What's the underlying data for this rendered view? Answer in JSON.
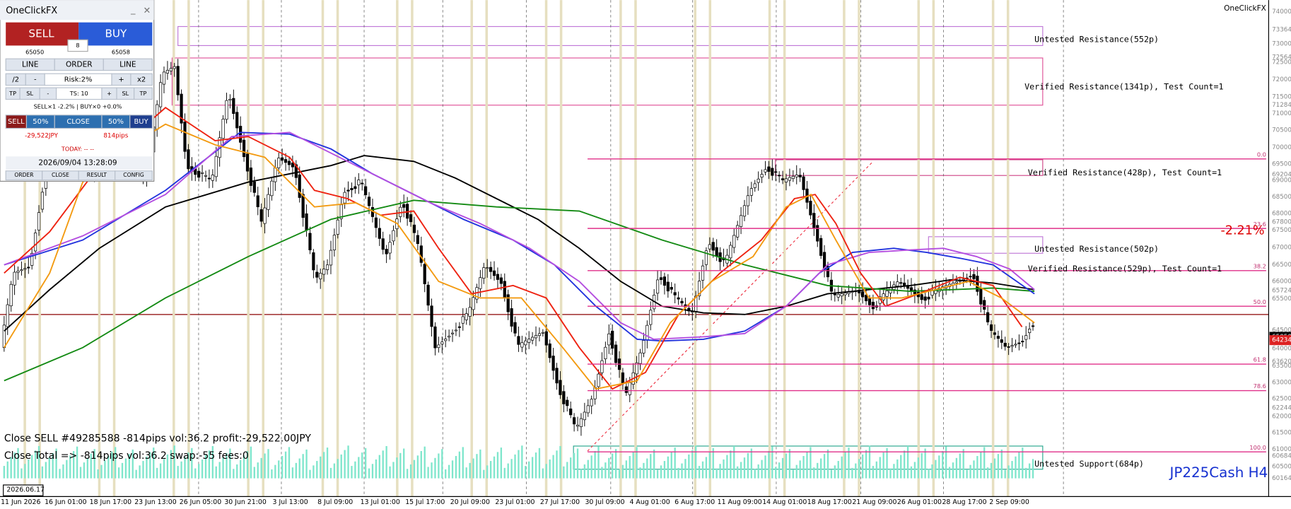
{
  "panel": {
    "title": "OneClickFX",
    "sell": "SELL",
    "buy": "BUY",
    "spread": "8",
    "bid": "65050",
    "ask": "65058",
    "row1": [
      "LINE",
      "ORDER",
      "LINE"
    ],
    "row2": [
      "/2",
      "-",
      "Risk:2%",
      "+",
      "x2"
    ],
    "row3": [
      "TP",
      "SL",
      "-",
      "TS: 10",
      "+",
      "SL",
      "TP"
    ],
    "positions": "SELL×1 -2.2% | BUY×0 +0.0%",
    "row4": [
      "SELL",
      "50%",
      "CLOSE",
      "50%",
      "BUY"
    ],
    "pnl": "-29,522JPY",
    "pips": "814pips",
    "today": "TODAY: -- --",
    "datetime": "2026/09/04  13:28:09",
    "tabs": [
      "ORDER",
      "CLOSE",
      "RESULT",
      "CONFIG"
    ]
  },
  "chart": {
    "brand": "OneClickFX",
    "symbol": "JP225Cash H4",
    "percent": "-2.21%",
    "start_date": "2026.06.17",
    "log": [
      "Close SELL #49285588 -814pips vol:36.2 profit:-29,522.00JPY",
      "Close Total => -814pips vol:36.2 swap:-55 fees:0"
    ],
    "zones": [
      "Untested Resistance(552p)",
      "Verified Resistance(1341p), Test Count=1",
      "Verified Resistance(428p), Test Count=1",
      "Untested Resistance(502p)",
      "Verified Resistance(529p), Test Count=1",
      "Untested Support(684p)"
    ],
    "fib_levels": [
      "0.0",
      "23.6",
      "38.2",
      "50.0",
      "61.8",
      "78.6",
      "100.0"
    ],
    "price_labels": [
      "74000",
      "73364",
      "73000",
      "72564",
      "72500",
      "72000",
      "71500",
      "71284",
      "71000",
      "70500",
      "70000",
      "69500",
      "69204",
      "69000",
      "68500",
      "68000",
      "67800",
      "67500",
      "67000",
      "66500",
      "66000",
      "65724",
      "65500",
      "65050",
      "64500",
      "64234",
      "64000",
      "63620",
      "63500",
      "63000",
      "62500",
      "62244",
      "62000",
      "61500",
      "61000",
      "60684",
      "60500",
      "60164"
    ],
    "dates": [
      "11 Jun 2026",
      "16 Jun 01:00",
      "18 Jun 17:00",
      "23 Jun 13:00",
      "26 Jun 05:00",
      "30 Jun 21:00",
      "3 Jul 13:00",
      "8 Jul 09:00",
      "13 Jul 01:00",
      "15 Jul 17:00",
      "20 Jul 09:00",
      "23 Jul 01:00",
      "27 Jul 17:00",
      "30 Jul 09:00",
      "4 Aug 01:00",
      "6 Aug 17:00",
      "11 Aug 09:00",
      "14 Aug 01:00",
      "18 Aug 17:00",
      "21 Aug 09:00",
      "26 Aug 01:00",
      "28 Aug 17:00",
      "2 Sep 09:00"
    ]
  }
}
